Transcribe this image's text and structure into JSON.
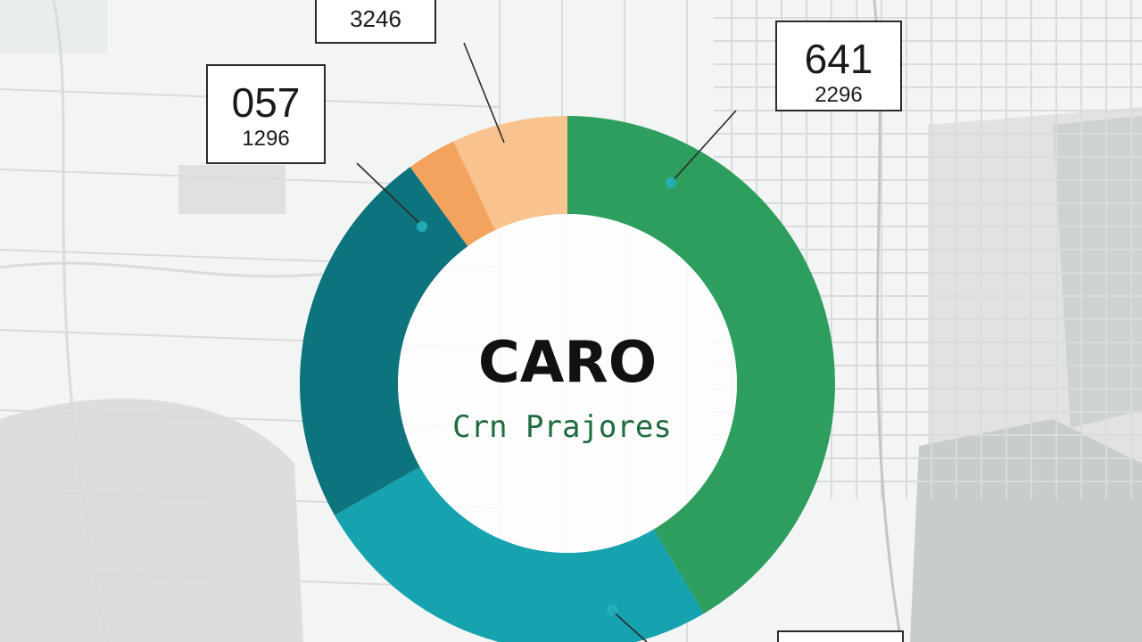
{
  "chart_data": {
    "type": "pie",
    "title": "CARO",
    "subtitle": "Crn Prajores",
    "slices": [
      {
        "color": "#2e9e5f",
        "fraction": 0.415
      },
      {
        "color": "#17a2b0",
        "fraction": 0.253
      },
      {
        "color": "#0d737c",
        "fraction": 0.232
      },
      {
        "color": "#f3a35e",
        "fraction": 0.03
      },
      {
        "color": "#f8c38f",
        "fraction": 0.07
      }
    ],
    "callouts": [
      {
        "main": "",
        "small": "3246"
      },
      {
        "main": "641",
        "small": "2296"
      },
      {
        "main": "057",
        "small": "1296"
      },
      {
        "main": "",
        "small": ""
      }
    ]
  },
  "colors": {
    "background": "#f3f4f4",
    "map_roads": "#d9dcdc",
    "map_blocks": "#c8cbcb"
  }
}
